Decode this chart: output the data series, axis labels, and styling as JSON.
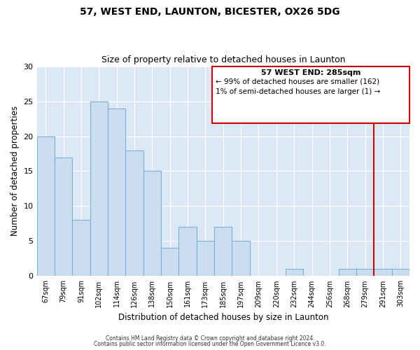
{
  "title": "57, WEST END, LAUNTON, BICESTER, OX26 5DG",
  "subtitle": "Size of property relative to detached houses in Launton",
  "xlabel": "Distribution of detached houses by size in Launton",
  "ylabel": "Number of detached properties",
  "categories": [
    "67sqm",
    "79sqm",
    "91sqm",
    "102sqm",
    "114sqm",
    "126sqm",
    "138sqm",
    "150sqm",
    "161sqm",
    "173sqm",
    "185sqm",
    "197sqm",
    "209sqm",
    "220sqm",
    "232sqm",
    "244sqm",
    "256sqm",
    "268sqm",
    "279sqm",
    "291sqm",
    "303sqm"
  ],
  "values": [
    20,
    17,
    8,
    25,
    24,
    18,
    15,
    4,
    7,
    5,
    7,
    5,
    0,
    0,
    1,
    0,
    0,
    1,
    1,
    1,
    1
  ],
  "bar_color": "#ccddf0",
  "bar_edge_color": "#7bafd4",
  "vline_x_index": 19,
  "vline_color": "#cc0000",
  "ylim": [
    0,
    30
  ],
  "yticks": [
    0,
    5,
    10,
    15,
    20,
    25,
    30
  ],
  "annotation_title": "57 WEST END: 285sqm",
  "annotation_line1": "← 99% of detached houses are smaller (162)",
  "annotation_line2": "1% of semi-detached houses are larger (1) →",
  "footer1": "Contains HM Land Registry data © Crown copyright and database right 2024.",
  "footer2": "Contains public sector information licensed under the Open Government Licence v3.0.",
  "ax_facecolor": "#dce8f5",
  "grid_color": "#ffffff",
  "fig_facecolor": "#ffffff"
}
